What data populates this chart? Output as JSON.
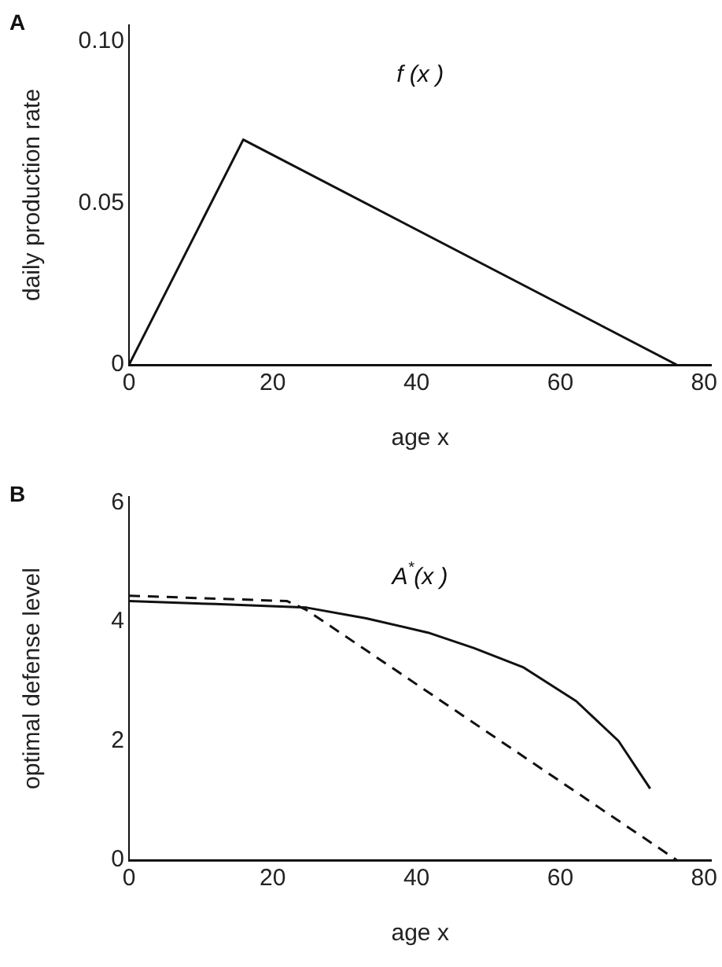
{
  "chart_data": [
    {
      "type": "line",
      "xlabel": "age x",
      "ylabel": "daily production rate",
      "xlim": [
        0,
        81
      ],
      "xticks": [
        0,
        20,
        40,
        60,
        80
      ],
      "ylim": [
        0,
        0.105
      ],
      "yticks": [
        0,
        0.05,
        {
          "value": 0.1,
          "label": "0.10"
        }
      ],
      "grid": false,
      "legend": false,
      "marker": "none",
      "series": [
        {
          "color": "#111111",
          "line_style": "solid",
          "x": [
            0,
            15.9,
            76.2
          ],
          "values": [
            0,
            0.0696,
            0
          ]
        }
      ],
      "annotations": [
        "A",
        "f (x )"
      ]
    },
    {
      "type": "line",
      "xlabel": "age x",
      "ylabel": "optimal defense level",
      "xlim": [
        0,
        81
      ],
      "xticks": [
        0,
        20,
        40,
        60,
        80
      ],
      "ylim": [
        0,
        6.1
      ],
      "yticks": [
        0,
        2,
        4,
        6
      ],
      "grid": false,
      "legend": false,
      "marker": "none",
      "series": [
        {
          "color": "#111111",
          "line_style": "solid",
          "x": [
            0,
            12,
            24.7,
            33,
            41.6,
            48,
            54.8,
            62.2,
            68.1,
            72.5
          ],
          "values": [
            4.35,
            4.3,
            4.24,
            4.06,
            3.82,
            3.56,
            3.24,
            2.67,
            2.0,
            1.2
          ]
        },
        {
          "color": "#111111",
          "line_style": "dashed",
          "x": [
            0,
            22,
            24.7,
            76.2
          ],
          "values": [
            4.44,
            4.35,
            4.2,
            0
          ]
        }
      ],
      "annotations": [
        "B",
        "A$^{*}$(x )"
      ]
    }
  ]
}
